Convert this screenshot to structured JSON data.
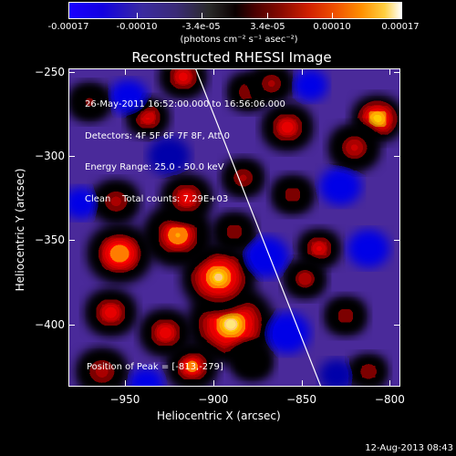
{
  "colorbar": {
    "ticks": [
      "-0.00017",
      "-0.00010",
      "-3.4e-05",
      "3.4e-05",
      "0.00010",
      "0.00017"
    ],
    "label": "(photons cm⁻² s⁻¹ asec⁻²)",
    "range": [
      -0.00017,
      0.00017
    ]
  },
  "plot": {
    "title": "Reconstructed RHESSI Image",
    "annotations": [
      "26-May-2011 16:52:00.000 to 16:56:06.000",
      "Detectors: 4F 5F 6F 7F 8F, Att 0",
      "Energy Range: 25.0 - 50.0 keV",
      "Clean    Total counts: 7.29E+03"
    ],
    "peak": "Position of Peak = [-813,-279]"
  },
  "footer": {
    "timestamp": "12-Aug-2013 08:43"
  },
  "chart_data": {
    "type": "heatmap",
    "title": "Reconstructed RHESSI Image",
    "xlabel": "Heliocentric X (arcsec)",
    "ylabel": "Heliocentric Y (arcsec)",
    "xlim": [
      -982,
      -794
    ],
    "ylim": [
      -437,
      -248
    ],
    "x_ticks": [
      -950,
      -900,
      -850,
      -800
    ],
    "y_ticks": [
      -250,
      -300,
      -350,
      -400
    ],
    "x_tick_labels": [
      "−950",
      "−900",
      "−850",
      "−800"
    ],
    "y_tick_labels": [
      "−250",
      "−300",
      "−350",
      "−400"
    ],
    "limb_line": [
      [
        -910,
        -248
      ],
      [
        -839,
        -437
      ]
    ],
    "peak_position": [
      -813,
      -279
    ],
    "blobs": [
      {
        "x": -807,
        "y": -278,
        "v": 1.0,
        "s": 12
      },
      {
        "x": -820,
        "y": -295,
        "v": 0.6,
        "s": 12
      },
      {
        "x": -890,
        "y": -400,
        "v": 0.95,
        "s": 20
      },
      {
        "x": -897,
        "y": -372,
        "v": 0.9,
        "s": 17
      },
      {
        "x": -920,
        "y": -347,
        "v": 0.8,
        "s": 16
      },
      {
        "x": -915,
        "y": -325,
        "v": 0.7,
        "s": 12
      },
      {
        "x": -912,
        "y": -425,
        "v": 0.8,
        "s": 12
      },
      {
        "x": -927,
        "y": -405,
        "v": 0.65,
        "s": 12
      },
      {
        "x": -953,
        "y": -358,
        "v": 0.85,
        "s": 15
      },
      {
        "x": -958,
        "y": -393,
        "v": 0.65,
        "s": 12
      },
      {
        "x": -955,
        "y": -327,
        "v": 0.55,
        "s": 11
      },
      {
        "x": -963,
        "y": -428,
        "v": 0.55,
        "s": 12
      },
      {
        "x": -937,
        "y": -277,
        "v": 0.75,
        "s": 10
      },
      {
        "x": -917,
        "y": -253,
        "v": 0.7,
        "s": 11
      },
      {
        "x": -880,
        "y": -262,
        "v": 0.55,
        "s": 10
      },
      {
        "x": -858,
        "y": -283,
        "v": 0.7,
        "s": 12
      },
      {
        "x": -867,
        "y": -257,
        "v": 0.55,
        "s": 10
      },
      {
        "x": -883,
        "y": -313,
        "v": 0.55,
        "s": 10
      },
      {
        "x": -855,
        "y": -323,
        "v": 0.5,
        "s": 10
      },
      {
        "x": -888,
        "y": -345,
        "v": 0.5,
        "s": 10
      },
      {
        "x": -840,
        "y": -355,
        "v": 0.7,
        "s": 10
      },
      {
        "x": -848,
        "y": -373,
        "v": 0.6,
        "s": 10
      },
      {
        "x": -825,
        "y": -395,
        "v": 0.45,
        "s": 10
      },
      {
        "x": -812,
        "y": -428,
        "v": 0.55,
        "s": 9
      },
      {
        "x": -970,
        "y": -268,
        "v": 0.4,
        "s": 10
      },
      {
        "x": -878,
        "y": -422,
        "v": 0.35,
        "s": 10
      },
      {
        "x": -948,
        "y": -265,
        "v": -0.45,
        "s": 11
      },
      {
        "x": -925,
        "y": -300,
        "v": -0.35,
        "s": 12
      },
      {
        "x": -870,
        "y": -360,
        "v": -0.6,
        "s": 13
      },
      {
        "x": -858,
        "y": -405,
        "v": -0.55,
        "s": 13
      },
      {
        "x": -828,
        "y": -318,
        "v": -0.45,
        "s": 12
      },
      {
        "x": -812,
        "y": -355,
        "v": -0.45,
        "s": 12
      },
      {
        "x": -975,
        "y": -328,
        "v": -0.4,
        "s": 10
      },
      {
        "x": -845,
        "y": -258,
        "v": -0.5,
        "s": 10
      },
      {
        "x": -938,
        "y": -435,
        "v": -0.4,
        "s": 10
      },
      {
        "x": -830,
        "y": -430,
        "v": -0.35,
        "s": 10
      }
    ]
  }
}
